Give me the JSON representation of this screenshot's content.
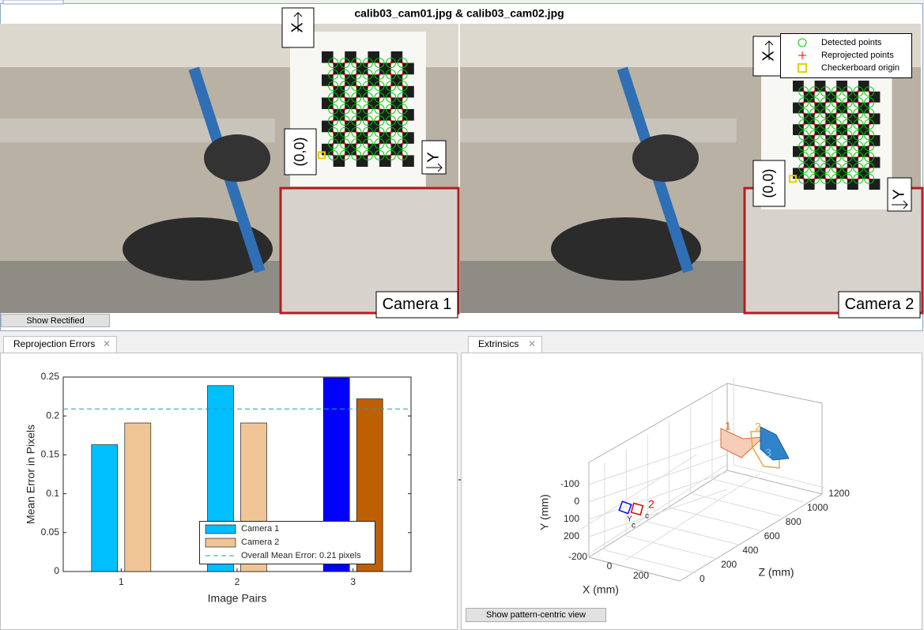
{
  "window": {
    "title": "calib03_cam01.jpg & calib03_cam02.jpg",
    "images": [
      {
        "label": "Camera 1",
        "x_label": "X",
        "y_label": "Y",
        "origin_label": "(0,0)"
      },
      {
        "label": "Camera 2",
        "x_label": "X",
        "y_label": "Y",
        "origin_label": "(0,0)"
      }
    ],
    "legend": [
      {
        "name": "Detected points",
        "color": "#00cc00"
      },
      {
        "name": "Reprojected points",
        "color": "#ff0000"
      },
      {
        "name": "Checkerboard origin",
        "color": "#e6d000"
      }
    ],
    "button": "Show Rectified"
  },
  "tabs": [
    "Reprojection Errors",
    "Extrinsics"
  ],
  "chart_data": {
    "type": "bar",
    "xlabel": "Image Pairs",
    "ylabel": "Mean Error in Pixels",
    "categories": [
      "1",
      "2",
      "3"
    ],
    "series": [
      {
        "name": "Camera 1",
        "color": "#00bfff",
        "bar_colors": [
          "#00bfff",
          "#00bfff",
          "#0000ff"
        ],
        "values": [
          0.163,
          0.239,
          0.249
        ]
      },
      {
        "name": "Camera 2",
        "color": "#f0c596",
        "bar_colors": [
          "#f0c596",
          "#f0c596",
          "#bf6000"
        ],
        "values": [
          0.191,
          0.191,
          0.222
        ]
      }
    ],
    "mean_line": {
      "name": "Overall Mean Error: 0.21 pixels",
      "value": 0.209,
      "color": "#2a9bb5"
    },
    "ylim": [
      0,
      0.25
    ],
    "yticks": [
      0,
      0.05,
      0.1,
      0.15,
      0.2,
      0.25
    ]
  },
  "extrinsics": {
    "xlabel": "X (mm)",
    "ylabel": "Y (mm)",
    "zlabel": "Z (mm)",
    "xticks": [
      -200,
      0,
      200
    ],
    "yticks": [
      -100,
      0,
      100,
      200
    ],
    "zticks": [
      0,
      200,
      400,
      600,
      800,
      1000,
      1200
    ],
    "board_labels": [
      "1",
      "2",
      "3"
    ],
    "camera_labels": [
      "2",
      "Y",
      "c",
      "c"
    ],
    "button": "Show pattern-centric view"
  }
}
